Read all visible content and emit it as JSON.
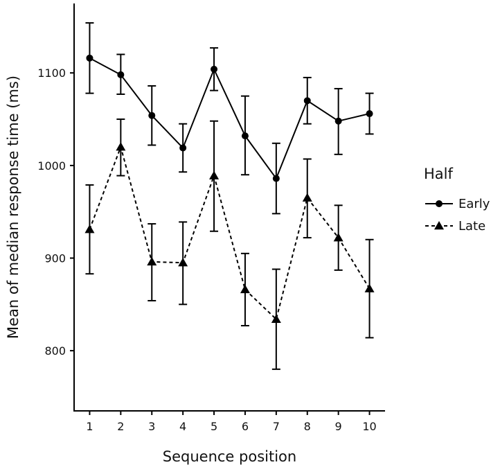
{
  "chart_data": {
    "type": "line",
    "xlabel": "Sequence position",
    "ylabel": "Mean of median response time (ms)",
    "x": [
      1,
      2,
      3,
      4,
      5,
      6,
      7,
      8,
      9,
      10
    ],
    "xlim": [
      0.5,
      10.5
    ],
    "ylim": [
      735,
      1175
    ],
    "yticks": [
      800,
      900,
      1000,
      1100
    ],
    "grid": false,
    "legend": {
      "title": "Half",
      "position": "right"
    },
    "series": [
      {
        "name": "Early",
        "marker": "circle",
        "line_style": "solid",
        "values": [
          1116,
          1098,
          1054,
          1019,
          1104,
          1032,
          986,
          1070,
          1048,
          1056
        ],
        "error_low": [
          1078,
          1077,
          1022,
          993,
          1081,
          990,
          948,
          1045,
          1012,
          1034
        ],
        "error_high": [
          1154,
          1120,
          1086,
          1045,
          1127,
          1075,
          1024,
          1095,
          1083,
          1078
        ]
      },
      {
        "name": "Late",
        "marker": "triangle",
        "line_style": "dashed",
        "values": [
          931,
          1020,
          896,
          895,
          989,
          866,
          834,
          965,
          922,
          867
        ],
        "error_low": [
          883,
          989,
          854,
          850,
          929,
          827,
          780,
          922,
          887,
          814
        ],
        "error_high": [
          979,
          1050,
          937,
          939,
          1048,
          905,
          888,
          1007,
          957,
          920
        ]
      }
    ]
  }
}
